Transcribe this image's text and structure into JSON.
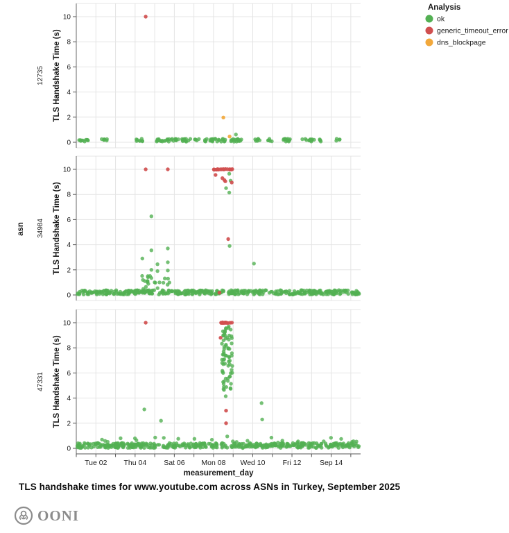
{
  "watermark": {
    "brand": "OONI"
  },
  "colors": {
    "ok": "#53b053",
    "generic_timeout_error": "#d04f4f",
    "dns_blockpage": "#f2a83b",
    "grid": "#e4e4e4",
    "axis": "#828282",
    "tick": "#555555",
    "text": "#1a1a1a",
    "watermark": "#8c8c8c"
  },
  "chart_data": {
    "type": "scatter",
    "title": "TLS handshake times for www.youtube.com across ASNs in Turkey, September 2025",
    "xlabel": "measurement_day",
    "ylabel": "TLS Handshake Time (s)",
    "facet_axis_label": "asn",
    "grid": true,
    "x_domain": [
      1.0,
      15.5
    ],
    "y_domain": [
      0,
      10.5
    ],
    "y_ticks": [
      0,
      2,
      4,
      6,
      8,
      10
    ],
    "x_minor_days": [
      1,
      2,
      3,
      4,
      5,
      6,
      7,
      8,
      9,
      10,
      11,
      12,
      13,
      14,
      15
    ],
    "x_ticks": [
      {
        "v": 2,
        "label": "Tue 02"
      },
      {
        "v": 4,
        "label": "Thu 04"
      },
      {
        "v": 6,
        "label": "Sat 06"
      },
      {
        "v": 8,
        "label": "Mon 08"
      },
      {
        "v": 10,
        "label": "Wed 10"
      },
      {
        "v": 12,
        "label": "Fri 12"
      },
      {
        "v": 14,
        "label": "Sep 14"
      }
    ],
    "legend": {
      "title": "Analysis",
      "items": [
        {
          "label": "ok",
          "series": "ok"
        },
        {
          "label": "generic_timeout_error",
          "series": "generic_timeout_error"
        },
        {
          "label": "dns_blockpage",
          "series": "dns_blockpage"
        }
      ]
    },
    "facets": [
      {
        "asn": "12735",
        "series": [
          {
            "name": "ok",
            "points": [
              [
                9.14,
                0.62
              ]
            ],
            "bands": [
              {
                "x": [
                  1.05,
                  15.45
                ],
                "y": [
                  0.05,
                  0.28
                ],
                "count": 170,
                "clumps": 30
              }
            ]
          },
          {
            "name": "generic_timeout_error",
            "points": [
              [
                4.54,
                10.0
              ]
            ],
            "bands": []
          },
          {
            "name": "dns_blockpage",
            "points": [
              [
                8.5,
                1.97
              ],
              [
                8.82,
                0.46
              ]
            ],
            "bands": []
          }
        ]
      },
      {
        "asn": "34984",
        "series": [
          {
            "name": "ok",
            "points": [
              [
                4.83,
                6.26
              ],
              [
                4.83,
                3.55
              ],
              [
                5.67,
                3.7
              ],
              [
                4.37,
                2.9
              ],
              [
                5.14,
                2.45
              ],
              [
                5.67,
                2.6
              ],
              [
                4.83,
                2.0
              ],
              [
                5.14,
                1.9
              ],
              [
                5.67,
                1.95
              ],
              [
                4.83,
                1.35
              ],
              [
                4.4,
                1.2
              ],
              [
                5.68,
                1.3
              ],
              [
                8.8,
                9.65
              ],
              [
                8.87,
                9.1
              ],
              [
                8.64,
                8.5
              ],
              [
                8.8,
                8.15
              ],
              [
                8.82,
                3.9
              ],
              [
                10.06,
                2.5
              ]
            ],
            "bands": [
              {
                "x": [
                  1.05,
                  15.45
                ],
                "y": [
                  0.03,
                  0.38
                ],
                "count": 430
              },
              {
                "x": [
                  4.3,
                  5.8
                ],
                "y": [
                  0.3,
                  1.55
                ],
                "count": 20
              }
            ]
          },
          {
            "name": "generic_timeout_error",
            "points": [
              [
                4.54,
                10.0
              ],
              [
                5.67,
                10.0
              ],
              [
                8.1,
                9.55
              ],
              [
                8.45,
                9.3
              ],
              [
                8.55,
                9.15
              ],
              [
                8.6,
                9.05
              ],
              [
                8.93,
                8.95
              ],
              [
                8.75,
                4.45
              ],
              [
                8.3,
                0.18
              ]
            ],
            "bands": [
              {
                "x": [
                  8.0,
                  8.42
                ],
                "y": [
                  9.97,
                  10.03
                ],
                "count": 9
              },
              {
                "x": [
                  8.47,
                  8.97
                ],
                "y": [
                  9.97,
                  10.03
                ],
                "count": 8
              }
            ]
          },
          {
            "name": "dns_blockpage",
            "points": [],
            "bands": []
          }
        ]
      },
      {
        "asn": "47331",
        "series": [
          {
            "name": "ok",
            "points": [
              [
                4.47,
                3.1
              ],
              [
                5.32,
                2.2
              ],
              [
                10.45,
                3.6
              ],
              [
                10.48,
                2.3
              ],
              [
                8.7,
                0.95
              ],
              [
                8.62,
                4.15
              ]
            ],
            "bands": [
              {
                "x": [
                  1.05,
                  15.45
                ],
                "y": [
                  0.03,
                  0.42
                ],
                "count": 430
              },
              {
                "x": [
                  1.1,
                  15.4
                ],
                "y": [
                  0.42,
                  0.88
                ],
                "count": 26
              },
              {
                "x": [
                  8.43,
                  8.97
                ],
                "y": [
                  6.0,
                  9.75
                ],
                "count": 55
              },
              {
                "x": [
                  8.45,
                  8.9
                ],
                "y": [
                  4.6,
                  6.0
                ],
                "count": 16
              }
            ]
          },
          {
            "name": "generic_timeout_error",
            "points": [
              [
                4.54,
                10.0
              ],
              [
                8.36,
                8.8
              ],
              [
                8.64,
                3.0
              ],
              [
                8.64,
                2.0
              ]
            ],
            "bands": [
              {
                "x": [
                  8.36,
                  9.0
                ],
                "y": [
                  9.97,
                  10.03
                ],
                "count": 14
              }
            ]
          },
          {
            "name": "dns_blockpage",
            "points": [],
            "bands": []
          }
        ]
      }
    ]
  }
}
